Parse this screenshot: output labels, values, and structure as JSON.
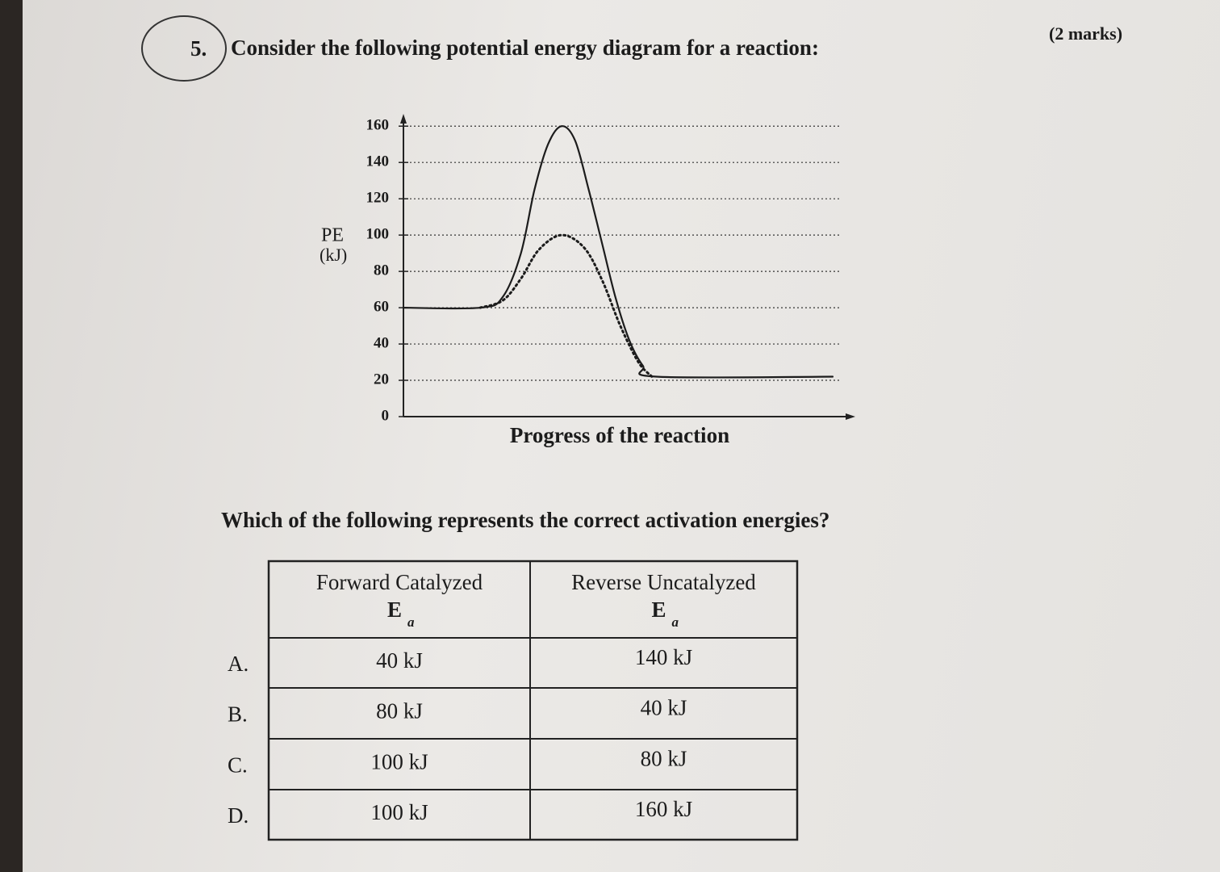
{
  "question": {
    "number": "5.",
    "text": "Consider the following potential energy diagram for a reaction:",
    "marks": "(2 marks)"
  },
  "chart_data": {
    "type": "line",
    "ylabel": [
      "PE",
      "(kJ)"
    ],
    "xlabel": "Progress of the reaction",
    "ylim": [
      0,
      165
    ],
    "yticks": [
      0,
      20,
      40,
      60,
      80,
      100,
      120,
      140,
      160
    ],
    "xlim": [
      0,
      100
    ],
    "grid": true,
    "series": [
      {
        "color": "#1c1c1c",
        "style": "solid",
        "x": [
          0,
          17,
          22,
          26,
          29,
          32,
          35,
          38,
          41,
          44,
          47,
          50,
          53,
          56,
          95
        ],
        "values": [
          60,
          60,
          66,
          90,
          125,
          150,
          160,
          152,
          125,
          95,
          65,
          42,
          28,
          22,
          22
        ]
      },
      {
        "color": "#1c1c1c",
        "style": "dotted",
        "x": [
          17,
          22,
          26,
          30,
          35,
          40,
          44,
          48,
          52,
          55
        ],
        "values": [
          60,
          64,
          76,
          92,
          100,
          93,
          75,
          50,
          30,
          22
        ]
      }
    ]
  },
  "question2": "Which of the following represents the correct activation energies?",
  "table": {
    "headers": [
      {
        "text": "Forward Catalyzed",
        "symbol": "E",
        "subscript": "a"
      },
      {
        "text": "Reverse Uncatalyzed",
        "symbol": "E",
        "subscript": "a"
      }
    ],
    "rows": [
      [
        "A.",
        "40 kJ",
        "140 kJ"
      ],
      [
        "B.",
        "80 kJ",
        "40 kJ"
      ],
      [
        "C.",
        "100 kJ",
        "80 kJ"
      ],
      [
        "D.",
        "100 kJ",
        "160 kJ"
      ]
    ]
  }
}
